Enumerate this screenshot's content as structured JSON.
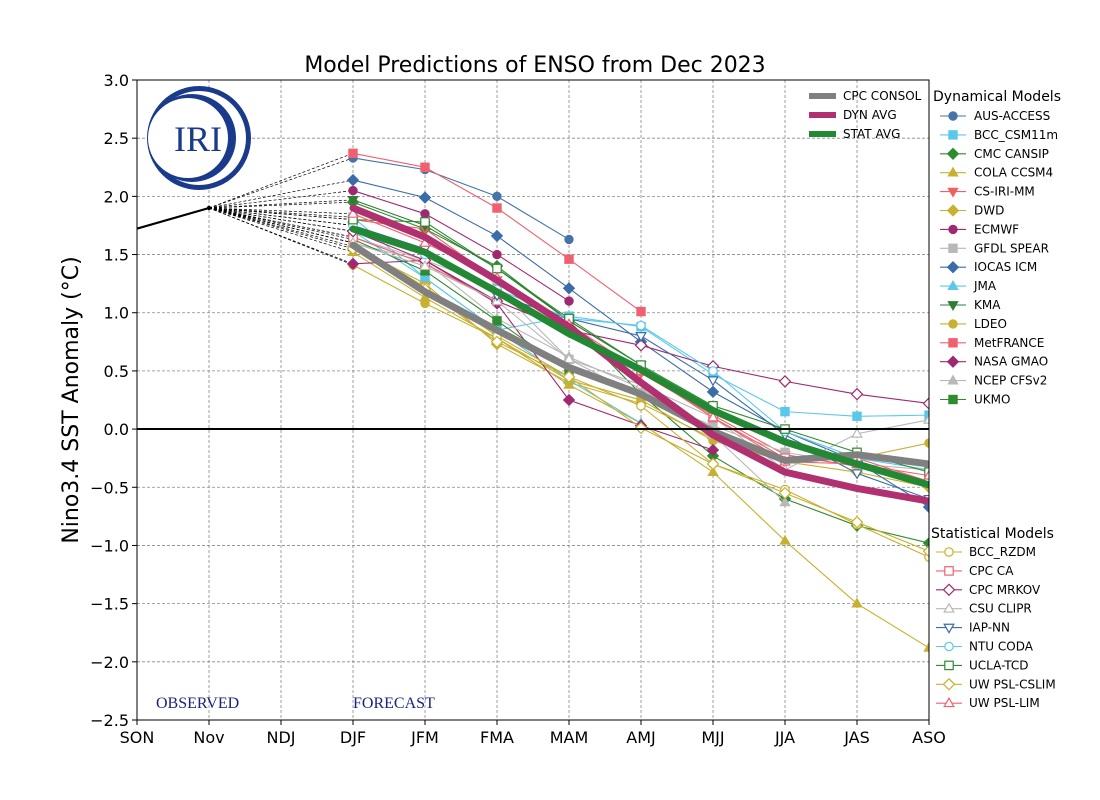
{
  "chart_data": {
    "type": "line",
    "title": "Model Predictions of ENSO from Dec 2023",
    "xlabel": "",
    "ylabel": "Nino3.4 SST Anomaly (°C)",
    "categories": [
      "SON",
      "Nov",
      "NDJ",
      "DJF",
      "JFM",
      "FMA",
      "MAM",
      "AMJ",
      "MJJ",
      "JJA",
      "JAS",
      "ASO"
    ],
    "ylim": [
      -2.5,
      3.0
    ],
    "yticks": [
      3.0,
      2.5,
      2.0,
      1.5,
      1.0,
      0.5,
      0.0,
      -0.5,
      -1.0,
      -1.5,
      -2.0,
      -2.5
    ],
    "ytick_labels": [
      "3.0",
      "2.5",
      "2.0",
      "1.5",
      "1.0",
      "0.5",
      "0.0",
      "−0.5",
      "−1.0",
      "−1.5",
      "−2.0",
      "−2.5"
    ],
    "grid": true,
    "observed": {
      "label": "OBSERVED",
      "x": [
        -0.3,
        1
      ],
      "values": [
        1.67,
        1.9
      ]
    },
    "forecast_label": "FORECAST",
    "logo_text": "IRI",
    "averages": [
      {
        "name": "CPC CONSOL",
        "color": "#808080",
        "values": [
          1.58,
          1.18,
          0.85,
          0.53,
          0.3,
          -0.02,
          -0.27,
          -0.22,
          -0.3
        ]
      },
      {
        "name": "DYN AVG",
        "color": "#b03070",
        "values": [
          1.9,
          1.65,
          1.28,
          0.88,
          0.4,
          -0.05,
          -0.37,
          -0.51,
          -0.62
        ]
      },
      {
        "name": "STAT AVG",
        "color": "#228833",
        "values": [
          1.72,
          1.52,
          1.18,
          0.82,
          0.51,
          0.16,
          -0.11,
          -0.3,
          -0.48
        ]
      }
    ],
    "dynamical_heading": "Dynamical Models",
    "statistical_heading": "Statistical Models",
    "dynamical_models": [
      {
        "name": "AUS-ACCESS",
        "color": "#4674a8",
        "marker": "circle",
        "values": [
          2.33,
          2.23,
          2.0,
          1.63
        ]
      },
      {
        "name": "BCC_CSM11m",
        "color": "#5bc8ea",
        "marker": "square",
        "values": [
          1.82,
          1.3,
          0.85,
          0.97,
          0.88,
          0.47,
          0.15,
          0.11,
          0.12
        ]
      },
      {
        "name": "CMC CANSIP",
        "color": "#2e8b2e",
        "marker": "diamond",
        "values": [
          1.95,
          1.72,
          1.4,
          0.93,
          0.3,
          -0.23,
          -0.6,
          -0.83,
          -0.98
        ]
      },
      {
        "name": "COLA CCSM4",
        "color": "#c8b030",
        "marker": "triangle-up",
        "values": [
          1.52,
          1.13,
          0.78,
          0.38,
          0.05,
          -0.37,
          -0.96,
          -1.5,
          -1.88
        ]
      },
      {
        "name": "CS-IRI-MM",
        "color": "#f06060",
        "marker": "triangle-down",
        "values": [
          1.8,
          1.72,
          1.28,
          0.88,
          0.48,
          0.12,
          -0.22,
          -0.32,
          -0.47
        ]
      },
      {
        "name": "DWD",
        "color": "#c8b030",
        "marker": "diamond",
        "values": [
          1.57,
          1.25,
          0.73,
          0.4,
          0.22,
          -0.08,
          -0.28,
          -0.37,
          -0.5
        ]
      },
      {
        "name": "ECMWF",
        "color": "#a02870",
        "marker": "circle",
        "values": [
          2.05,
          1.85,
          1.5,
          1.1
        ]
      },
      {
        "name": "GFDL SPEAR",
        "color": "#b8b8b8",
        "marker": "square",
        "values": [
          1.65,
          1.45,
          1.22,
          0.6,
          0.28,
          0.03,
          -0.2,
          -0.3,
          -0.35
        ]
      },
      {
        "name": "IOCAS ICM",
        "color": "#3a6ca8",
        "marker": "diamond",
        "values": [
          2.14,
          1.99,
          1.66,
          1.21,
          0.75,
          0.32,
          -0.02,
          -0.28,
          -0.67
        ]
      },
      {
        "name": "JMA",
        "color": "#5bc8ea",
        "marker": "triangle-up",
        "values": [
          1.7,
          1.3,
          0.85,
          0.42,
          0.05
        ]
      },
      {
        "name": "KMA",
        "color": "#2e7d32",
        "marker": "triangle-down",
        "values": [
          1.97,
          1.75,
          1.38,
          0.93,
          0.55
        ]
      },
      {
        "name": "LDEO",
        "color": "#c8b030",
        "marker": "circle",
        "values": [
          1.41,
          1.08,
          0.78,
          0.42,
          0.25,
          -0.1,
          -0.28,
          -0.25,
          -0.12
        ]
      },
      {
        "name": "MetFRANCE",
        "color": "#f06070",
        "marker": "square",
        "values": [
          2.37,
          2.25,
          1.9,
          1.46,
          1.01
        ]
      },
      {
        "name": "NASA GMAO",
        "color": "#a02870",
        "marker": "diamond",
        "values": [
          1.42,
          1.45,
          1.08,
          0.25,
          0.03,
          -0.18
        ]
      },
      {
        "name": "NCEP CFSv2",
        "color": "#b8b8b8",
        "marker": "triangle-up",
        "values": [
          1.6,
          1.44,
          0.95,
          0.62,
          0.35,
          -0.05,
          -0.63
        ]
      },
      {
        "name": "UKMO",
        "color": "#2e8b2e",
        "marker": "square",
        "values": [
          1.63,
          1.36,
          0.93,
          0.5
        ]
      }
    ],
    "statistical_models": [
      {
        "name": "BCC_RZDM",
        "color": "#c8b030",
        "marker": "circle",
        "values": [
          1.6,
          1.22,
          0.8,
          0.45,
          0.2,
          -0.3,
          -0.52,
          -0.82,
          -1.1
        ]
      },
      {
        "name": "CPC CA",
        "color": "#f06070",
        "marker": "square",
        "values": [
          1.65,
          1.42,
          1.1,
          0.85,
          0.5,
          0.1,
          -0.25,
          -0.25,
          -0.45
        ]
      },
      {
        "name": "CPC MRKOV",
        "color": "#a02870",
        "marker": "diamond",
        "values": [
          1.7,
          1.45,
          1.1,
          0.85,
          0.72,
          0.54,
          0.41,
          0.3,
          0.22
        ]
      },
      {
        "name": "CSU CLIPR",
        "color": "#b8b8b8",
        "marker": "triangle-up",
        "values": [
          1.6,
          1.4,
          1.1,
          0.6,
          0.38,
          0.1,
          -0.35,
          -0.04,
          0.08
        ]
      },
      {
        "name": "IAP-NN",
        "color": "#3a6ca8",
        "marker": "triangle-down",
        "values": [
          1.75,
          1.55,
          1.15,
          0.95,
          0.8,
          0.42,
          -0.05,
          -0.38,
          -0.6
        ]
      },
      {
        "name": "NTU CODA",
        "color": "#5bc8ea",
        "marker": "circle",
        "values": [
          1.75,
          1.5,
          1.2,
          0.95,
          0.89,
          0.5,
          -0.02,
          -0.25,
          -0.35
        ]
      },
      {
        "name": "UCLA-TCD",
        "color": "#2e8b2e",
        "marker": "square",
        "values": [
          1.8,
          1.78,
          1.38,
          0.95,
          0.55,
          0.2,
          0.0,
          -0.2,
          -0.37
        ]
      },
      {
        "name": "UW PSL-CSLIM",
        "color": "#c8b030",
        "marker": "diamond",
        "values": [
          1.55,
          1.2,
          0.75,
          0.45,
          0.01,
          -0.3,
          -0.55,
          -0.8,
          -1.05
        ]
      },
      {
        "name": "UW PSL-LIM",
        "color": "#f06070",
        "marker": "triangle-up",
        "values": [
          1.85,
          1.6,
          1.3,
          0.9,
          0.5,
          0.1,
          -0.28,
          -0.3,
          -0.4
        ]
      }
    ]
  }
}
